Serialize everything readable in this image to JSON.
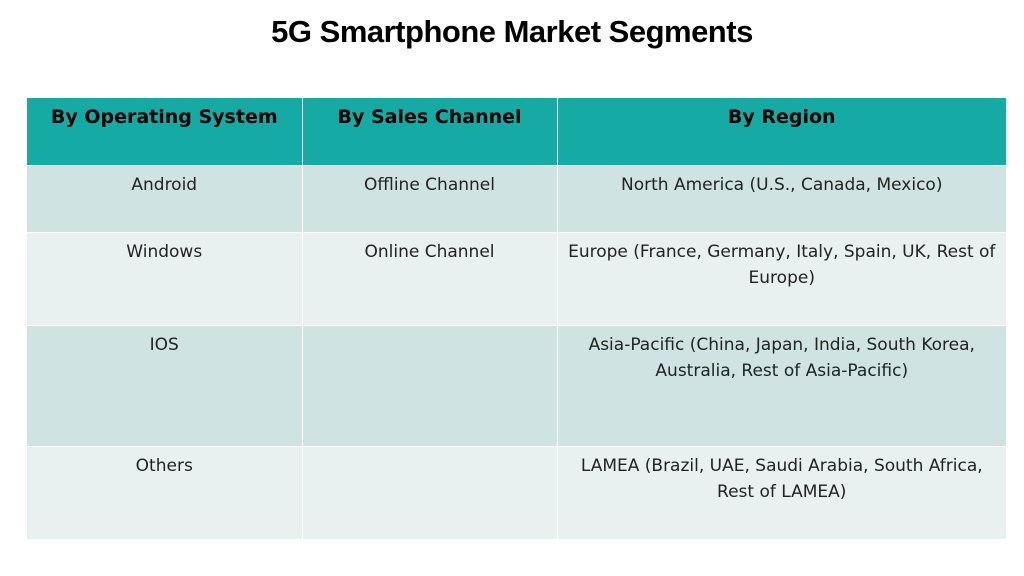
{
  "title": "5G Smartphone Market Segments",
  "table": {
    "headers": [
      "By Operating System",
      "By Sales Channel",
      "By Region"
    ],
    "rows": [
      [
        "Android",
        "Offline Channel",
        "North America  (U.S., Canada, Mexico)"
      ],
      [
        "Windows",
        "Online Channel",
        "Europe  (France, Germany, Italy, Spain, UK, Rest of Europe)"
      ],
      [
        "IOS",
        "",
        "Asia-Pacific  (China, Japan, India, South Korea, Australia, Rest of Asia-Pacific)"
      ],
      [
        "Others",
        "",
        "LAMEA  (Brazil, UAE, Saudi Arabia, South Africa, Rest of LAMEA)"
      ]
    ]
  },
  "colors": {
    "header_bg": "#15aba4",
    "row_odd_bg": "#cfe3e2",
    "row_even_bg": "#e8f1f0"
  }
}
